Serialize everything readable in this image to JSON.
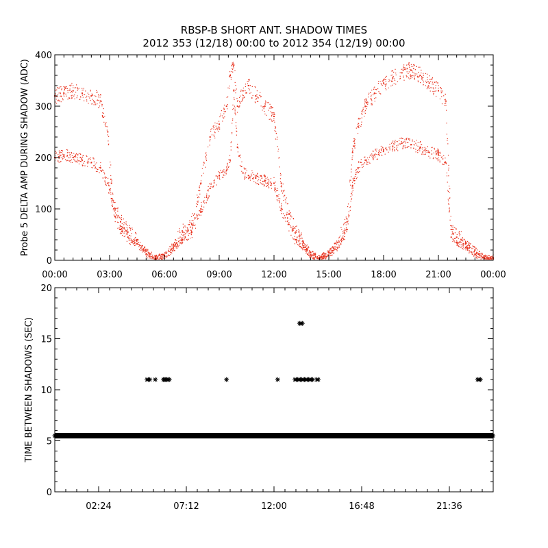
{
  "header": {
    "title": "RBSP-B SHORT ANT. SHADOW TIMES",
    "subtitle": "2012 353 (12/18) 00:00 to 2012 354 (12/19) 00:00"
  },
  "colors": {
    "amp_points": "#e8321e",
    "interval_points": "#000000",
    "axes": "#000000"
  },
  "chart_data": [
    {
      "type": "scatter",
      "name": "top",
      "ylabel": "Probe 5 DELTA AMP DURING SHADOW (ADC)",
      "xlabel": "",
      "xlim": [
        0,
        24
      ],
      "ylim": [
        0,
        400
      ],
      "x_ticks": [
        0,
        3,
        6,
        9,
        12,
        15,
        18,
        21,
        24
      ],
      "x_tick_labels": [
        "00:00",
        "03:00",
        "06:00",
        "09:00",
        "12:00",
        "15:00",
        "18:00",
        "21:00",
        "00:00"
      ],
      "y_ticks": [
        0,
        100,
        200,
        300,
        400
      ],
      "y_tick_labels": [
        "0",
        "100",
        "200",
        "300",
        "400"
      ],
      "grid": false,
      "marker": "dot",
      "series": [
        {
          "band": "upper",
          "x": [
            0.0,
            0.5,
            1.0,
            1.5,
            2.0,
            2.5,
            2.9,
            3.1,
            3.3,
            3.6,
            4.0,
            4.5,
            5.0,
            5.5,
            6.0,
            6.5,
            7.0,
            7.5,
            8.0,
            8.5,
            9.0,
            9.4,
            9.6,
            9.8,
            10.0,
            10.3,
            10.6,
            11.0,
            11.5,
            12.0,
            12.4,
            12.8,
            13.2,
            13.6,
            14.0,
            14.5,
            15.0,
            15.5,
            16.0,
            16.3,
            16.6,
            17.0,
            17.5,
            18.0,
            18.5,
            19.0,
            19.5,
            20.0,
            20.5,
            21.0,
            21.4,
            21.7,
            22.0,
            22.5,
            23.0,
            23.5,
            24.0
          ],
          "y": [
            320,
            325,
            330,
            325,
            320,
            310,
            250,
            150,
            100,
            75,
            55,
            40,
            18,
            5,
            10,
            30,
            55,
            70,
            150,
            240,
            265,
            300,
            360,
            380,
            300,
            330,
            340,
            320,
            300,
            280,
            150,
            90,
            55,
            35,
            15,
            5,
            15,
            35,
            75,
            210,
            260,
            300,
            325,
            345,
            355,
            365,
            370,
            360,
            345,
            330,
            310,
            60,
            45,
            35,
            20,
            5,
            5
          ]
        },
        {
          "band": "lower",
          "x": [
            0.0,
            0.5,
            1.0,
            1.5,
            2.0,
            2.5,
            2.9,
            3.1,
            3.3,
            3.6,
            4.0,
            4.5,
            5.0,
            5.5,
            6.0,
            6.5,
            7.0,
            7.5,
            8.0,
            8.5,
            9.0,
            9.4,
            9.6,
            9.8,
            10.0,
            10.3,
            10.6,
            11.0,
            11.5,
            12.0,
            12.4,
            12.8,
            13.2,
            13.6,
            14.0,
            14.5,
            15.0,
            15.5,
            16.0,
            16.3,
            16.6,
            17.0,
            17.5,
            18.0,
            18.5,
            19.0,
            19.5,
            20.0,
            20.5,
            21.0,
            21.4,
            21.7,
            22.0,
            22.5,
            23.0,
            23.5,
            24.0
          ],
          "y": [
            200,
            205,
            200,
            195,
            190,
            180,
            150,
            120,
            85,
            60,
            45,
            32,
            12,
            3,
            8,
            22,
            40,
            55,
            100,
            140,
            165,
            175,
            195,
            330,
            220,
            170,
            165,
            160,
            155,
            150,
            100,
            70,
            40,
            25,
            10,
            3,
            10,
            25,
            60,
            145,
            180,
            195,
            205,
            215,
            222,
            228,
            225,
            220,
            210,
            205,
            190,
            45,
            35,
            25,
            12,
            3,
            3
          ]
        }
      ]
    },
    {
      "type": "scatter",
      "name": "bottom",
      "ylabel": "TIME BETWEEN SHADOWS (SEC)",
      "xlabel": "",
      "xlim": [
        0,
        24
      ],
      "ylim": [
        0,
        20
      ],
      "x_ticks": [
        2.4,
        7.2,
        12.0,
        16.8,
        21.6
      ],
      "x_tick_labels": [
        "02:24",
        "07:12",
        "12:00",
        "16:48",
        "21:36"
      ],
      "y_ticks": [
        0,
        5,
        10,
        15,
        20
      ],
      "y_tick_labels": [
        "0",
        "5",
        "10",
        "15",
        "20"
      ],
      "grid": false,
      "marker": "asterisk",
      "baseline": {
        "y": 5.5,
        "x_start": 0.0,
        "x_end": 24.0
      },
      "series": [
        {
          "x": [
            5.05,
            5.12,
            5.2,
            5.5,
            5.95,
            6.0,
            6.07,
            6.13,
            6.2,
            6.27,
            9.4,
            12.2,
            13.15,
            13.22,
            13.3,
            13.37,
            13.45,
            13.52,
            13.6,
            13.67,
            13.75,
            13.82,
            13.9,
            13.97,
            14.05,
            14.12,
            14.35,
            14.42,
            23.15,
            23.22,
            23.3,
            13.4,
            13.47,
            13.55
          ],
          "y": [
            11,
            11,
            11,
            11,
            11,
            11,
            11,
            11,
            11,
            11,
            11,
            11,
            11,
            11,
            11,
            11,
            11,
            11,
            11,
            11,
            11,
            11,
            11,
            11,
            11,
            11,
            11,
            11,
            11,
            11,
            11,
            16.5,
            16.5,
            16.5
          ]
        }
      ]
    }
  ]
}
